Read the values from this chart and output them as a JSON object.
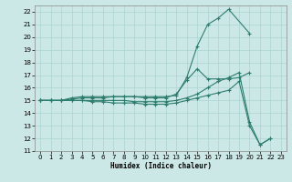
{
  "title": "",
  "xlabel": "Humidex (Indice chaleur)",
  "bg_color": "#cce8e6",
  "line_color": "#2d7d6e",
  "grid_color": "#aad4d0",
  "xlim": [
    -0.5,
    23.5
  ],
  "ylim": [
    11,
    22.5
  ],
  "xticks": [
    0,
    1,
    2,
    3,
    4,
    5,
    6,
    7,
    8,
    9,
    10,
    11,
    12,
    13,
    14,
    15,
    16,
    17,
    18,
    19,
    20,
    21,
    22,
    23
  ],
  "yticks": [
    11,
    12,
    13,
    14,
    15,
    16,
    17,
    18,
    19,
    20,
    21,
    22
  ],
  "curves": [
    {
      "x": [
        0,
        1,
        2,
        3,
        4,
        5,
        6,
        7,
        8,
        9,
        10,
        11,
        12,
        13,
        14,
        15,
        16,
        17,
        18,
        20
      ],
      "y": [
        15,
        15,
        15,
        15.2,
        15.3,
        15.3,
        15.3,
        15.3,
        15.3,
        15.3,
        15.3,
        15.3,
        15.3,
        15.4,
        16.8,
        19.3,
        21,
        21.5,
        22.2,
        20.3
      ]
    },
    {
      "x": [
        0,
        1,
        2,
        3,
        4,
        5,
        6,
        7,
        8,
        9,
        10,
        11,
        12,
        13,
        14,
        15,
        16,
        17,
        18,
        19,
        20
      ],
      "y": [
        15,
        15,
        15,
        15.1,
        15.2,
        15.2,
        15.2,
        15.3,
        15.3,
        15.3,
        15.2,
        15.2,
        15.2,
        15.5,
        16.6,
        17.5,
        16.7,
        16.7,
        16.7,
        16.8,
        17.2
      ]
    },
    {
      "x": [
        0,
        1,
        2,
        3,
        4,
        5,
        6,
        7,
        8,
        9,
        10,
        11,
        12,
        13,
        14,
        15,
        16,
        17,
        18,
        19,
        20,
        21,
        22
      ],
      "y": [
        15,
        15,
        15,
        15.0,
        15.0,
        15.0,
        15.0,
        15.0,
        15.0,
        14.9,
        14.9,
        14.9,
        14.9,
        15.0,
        15.2,
        15.5,
        16.0,
        16.5,
        16.8,
        17.2,
        13.3,
        11.5,
        12.0
      ]
    },
    {
      "x": [
        0,
        1,
        2,
        3,
        4,
        5,
        6,
        7,
        8,
        9,
        10,
        11,
        12,
        13,
        14,
        15,
        16,
        17,
        18,
        19,
        20,
        21,
        22
      ],
      "y": [
        15,
        15,
        15,
        15.0,
        15.0,
        14.9,
        14.9,
        14.8,
        14.8,
        14.8,
        14.7,
        14.7,
        14.7,
        14.8,
        15.0,
        15.2,
        15.4,
        15.6,
        15.8,
        16.5,
        13.0,
        11.5,
        12.0
      ]
    }
  ]
}
